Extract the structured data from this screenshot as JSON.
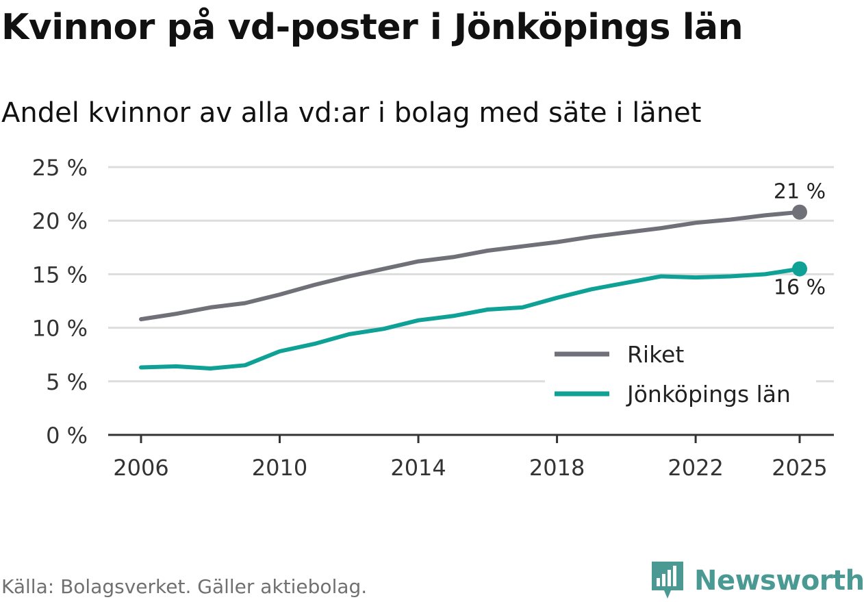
{
  "header": {
    "title": "Kvinnor på vd-poster i Jönköpings län",
    "subtitle": "Andel kvinnor av alla vd:ar i bolag med säte i länet"
  },
  "footer": {
    "source": "Källa: Bolagsverket. Gäller aktiebolag.",
    "brand": "Newsworthy"
  },
  "colors": {
    "riket": "#707078",
    "lan": "#0fa196",
    "grid": "#dddddd",
    "axis": "#333333",
    "brand": "#4a9a93"
  },
  "chart_data": {
    "type": "line",
    "title": "Kvinnor på vd-poster i Jönköpings län",
    "subtitle": "Andel kvinnor av alla vd:ar i bolag med säte i länet",
    "xlabel": "",
    "ylabel": "",
    "ylim": [
      0,
      25
    ],
    "xlim": [
      2005,
      2025.8
    ],
    "y_ticks": [
      0,
      5,
      10,
      15,
      20,
      25
    ],
    "y_tick_labels": [
      "0 %",
      "5 %",
      "10 %",
      "15 %",
      "20 %",
      "25 %"
    ],
    "x_ticks": [
      2006,
      2010,
      2014,
      2018,
      2022,
      2025
    ],
    "x_tick_labels": [
      "2006",
      "2010",
      "2014",
      "2018",
      "2022",
      "2025"
    ],
    "grid": true,
    "legend_position": "bottom-right",
    "x": [
      2006,
      2007,
      2008,
      2009,
      2010,
      2011,
      2012,
      2013,
      2014,
      2015,
      2016,
      2017,
      2018,
      2019,
      2020,
      2021,
      2022,
      2023,
      2024,
      2025
    ],
    "series": [
      {
        "name": "Riket",
        "color": "#707078",
        "values": [
          10.8,
          11.3,
          11.9,
          12.3,
          13.1,
          14.0,
          14.8,
          15.5,
          16.2,
          16.6,
          17.2,
          17.6,
          18.0,
          18.5,
          18.9,
          19.3,
          19.8,
          20.1,
          20.5,
          20.8
        ],
        "end_label": "21 %"
      },
      {
        "name": "Jönköpings län",
        "color": "#0fa196",
        "values": [
          6.3,
          6.4,
          6.2,
          6.5,
          7.8,
          8.5,
          9.4,
          9.9,
          10.7,
          11.1,
          11.7,
          11.9,
          12.8,
          13.6,
          14.2,
          14.8,
          14.7,
          14.8,
          15.0,
          15.5
        ],
        "end_label": "16 %"
      }
    ]
  }
}
